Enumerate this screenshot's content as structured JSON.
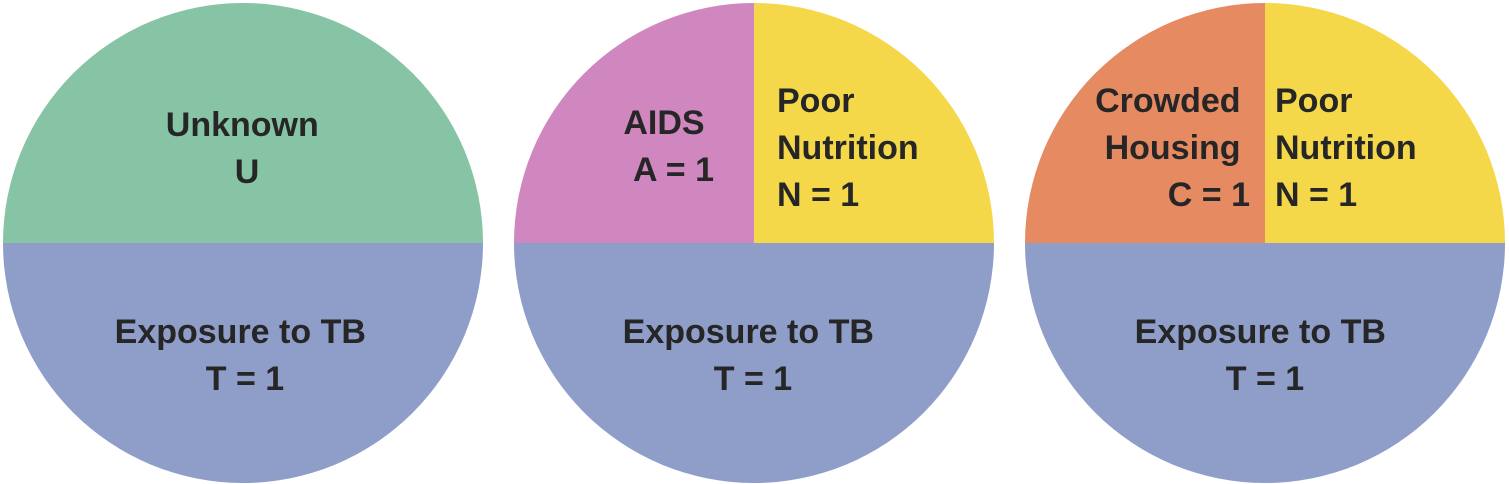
{
  "colors": {
    "exposure": "#8f9dc9",
    "unknown": "#87c3a5",
    "aids": "#d087bf",
    "nutrition": "#f4d84a",
    "housing": "#e68a62",
    "text": "#262626"
  },
  "pies": [
    {
      "bottom": {
        "name": "Exposure to TB",
        "value": "T = 1"
      },
      "top_full": {
        "name": "Unknown",
        "value": "U"
      }
    },
    {
      "bottom": {
        "name": "Exposure to TB",
        "value": "T = 1"
      },
      "top_left": {
        "line1": "AIDS",
        "value": "A = 1"
      },
      "top_right": {
        "line1": "Poor",
        "line2": "Nutrition",
        "value": "N = 1"
      }
    },
    {
      "bottom": {
        "name": "Exposure to TB",
        "value": "T = 1"
      },
      "top_left": {
        "line1": "Crowded",
        "line2": "Housing",
        "value": "C = 1"
      },
      "top_right": {
        "line1": "Poor",
        "line2": "Nutrition",
        "value": "N = 1"
      }
    }
  ]
}
